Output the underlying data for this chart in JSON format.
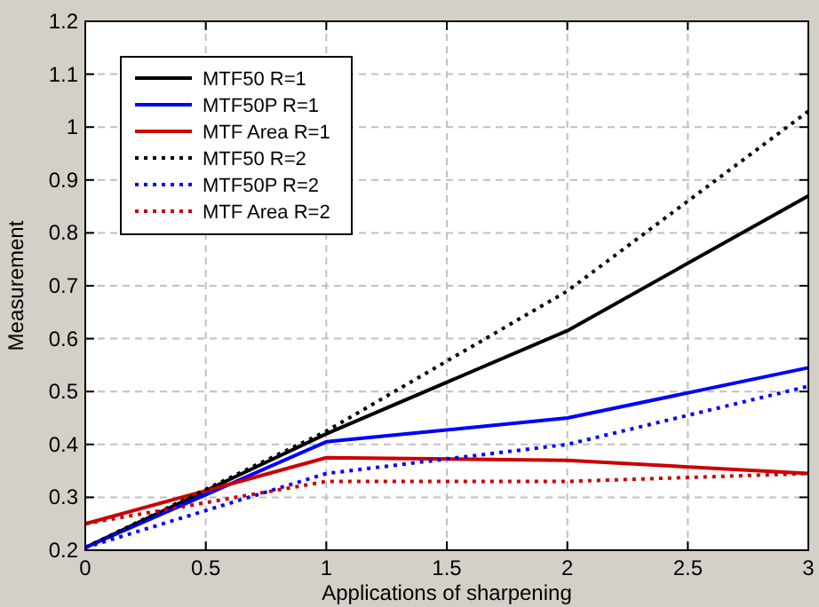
{
  "chart_data": {
    "type": "line",
    "xlabel": "Applications of sharpening",
    "ylabel": "Measurement",
    "x": [
      0,
      1,
      2,
      3
    ],
    "xlim": [
      0,
      3
    ],
    "xticks": [
      0,
      0.5,
      1,
      1.5,
      2,
      2.5,
      3
    ],
    "ylim": [
      0.2,
      1.2
    ],
    "yticks": [
      0.2,
      0.3,
      0.4,
      0.5,
      0.6,
      0.7,
      0.8,
      0.9,
      1,
      1.1,
      1.2
    ],
    "grid": true,
    "legend": "top left",
    "marker": "none",
    "series": [
      {
        "name": "MTF50 R=1",
        "color": "#000000",
        "line_style": "solid",
        "values": [
          0.205,
          0.42,
          0.615,
          0.87
        ]
      },
      {
        "name": "MTF50P R=1",
        "color": "#0000ff",
        "line_style": "solid",
        "values": [
          0.205,
          0.405,
          0.45,
          0.545
        ]
      },
      {
        "name": "MTF Area R=1",
        "color": "#cc0000",
        "line_style": "solid",
        "values": [
          0.25,
          0.375,
          0.37,
          0.345
        ]
      },
      {
        "name": "MTF50 R=2",
        "color": "#000000",
        "line_style": "dotted",
        "values": [
          0.205,
          0.425,
          0.69,
          1.03
        ]
      },
      {
        "name": "MTF50P R=2",
        "color": "#0000ff",
        "line_style": "dotted",
        "values": [
          0.205,
          0.345,
          0.4,
          0.51
        ]
      },
      {
        "name": "MTF Area R=2",
        "color": "#cc0000",
        "line_style": "dotted",
        "values": [
          0.25,
          0.33,
          0.33,
          0.345
        ]
      }
    ]
  }
}
